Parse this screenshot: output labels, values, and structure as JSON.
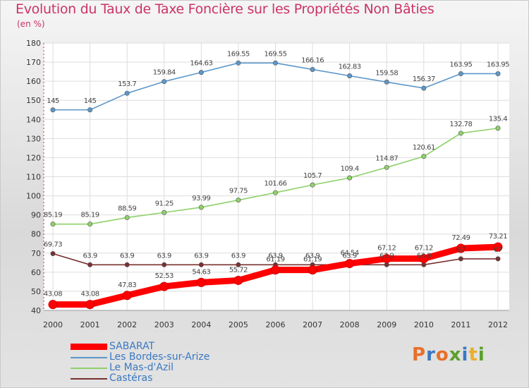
{
  "title": "Evolution du Taux de Taxe Foncière sur les Propriétés Non Bâties",
  "subtitle": "(en %)",
  "logo": {
    "text": "Proxiti",
    "colors": [
      "#e8702a",
      "#3a78c2",
      "#e8702a",
      "#5aa02c",
      "#3a78c2",
      "#e8b02a",
      "#5aa02c"
    ]
  },
  "chart_data": {
    "type": "line",
    "title": "Evolution du Taux de Taxe Foncière sur les Propriétés Non Bâties",
    "ylabel": "(en %)",
    "xlabel": "",
    "x": [
      "2000",
      "2001",
      "2002",
      "2003",
      "2004",
      "2005",
      "2006",
      "2007",
      "2008",
      "2009",
      "2010",
      "2011",
      "2012"
    ],
    "ylim": [
      40,
      180
    ],
    "yticks": [
      40,
      50,
      60,
      70,
      80,
      90,
      100,
      110,
      120,
      130,
      140,
      150,
      160,
      170,
      180
    ],
    "grid": true,
    "legend": "bottom-left",
    "series": [
      {
        "name": "SABARAT",
        "color": "#ff0000",
        "values": [
          43.08,
          43.08,
          47.83,
          52.53,
          54.63,
          55.72,
          61.19,
          61.19,
          64.54,
          67.12,
          67.12,
          72.49,
          73.21
        ],
        "labels": [
          "43.08",
          "43.08",
          "47.83",
          "52.53",
          "54.63",
          "55.72",
          "61.19",
          "61.19",
          "64.54",
          "67.12",
          "67.12",
          "72.49",
          "73.21"
        ]
      },
      {
        "name": "Les Bordes-sur-Arize",
        "color": "#5e97c9",
        "values": [
          145,
          145,
          153.7,
          159.84,
          164.63,
          169.55,
          169.55,
          166.16,
          162.83,
          159.58,
          156.37,
          163.95,
          163.95
        ],
        "labels": [
          "145",
          "145",
          "153.7",
          "159.84",
          "164.63",
          "169.55",
          "169.55",
          "166.16",
          "162.83",
          "159.58",
          "156.37",
          "163.95",
          "163.95"
        ]
      },
      {
        "name": "Le Mas-d'Azil",
        "color": "#8ed16a",
        "values": [
          85.19,
          85.19,
          88.59,
          91.25,
          93.99,
          97.75,
          101.66,
          105.7,
          109.4,
          114.87,
          120.61,
          132.78,
          135.4
        ],
        "labels": [
          "85.19",
          "85.19",
          "88.59",
          "91.25",
          "93.99",
          "97.75",
          "101.66",
          "105.7",
          "109.4",
          "114.87",
          "120.61",
          "132.78",
          "135.4"
        ]
      },
      {
        "name": "Castéras",
        "color": "#7a3030",
        "values": [
          69.73,
          63.9,
          63.9,
          63.9,
          63.9,
          63.9,
          63.9,
          63.9,
          63.9,
          63.9,
          63.9,
          67,
          67
        ],
        "labels": [
          "69.73",
          "63.9",
          "63.9",
          "63.9",
          "63.9",
          "63.9",
          "63.9",
          "63.9",
          "63.9",
          "63.9",
          "63.9",
          "67",
          "67"
        ]
      }
    ]
  }
}
